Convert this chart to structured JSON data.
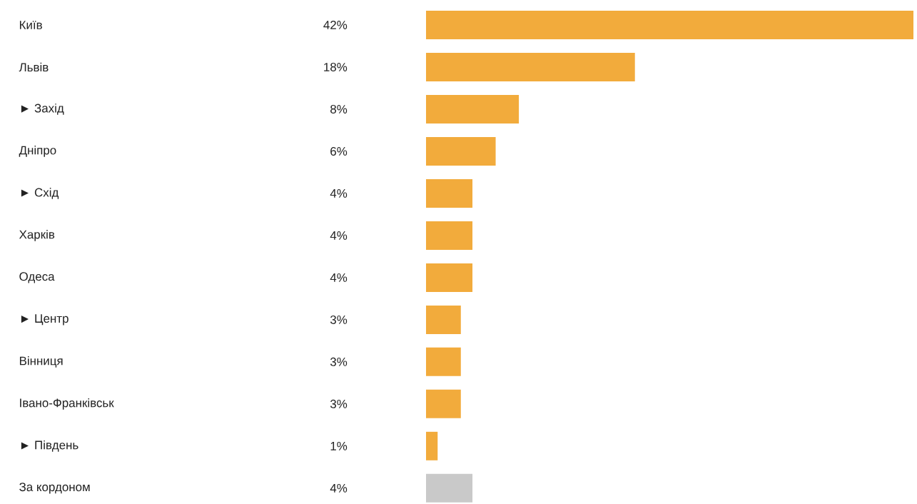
{
  "chart_data": {
    "type": "bar",
    "orientation": "horizontal",
    "categories": [
      "Київ",
      "Львів",
      "► Захід",
      "Дніпро",
      "► Схід",
      "Харків",
      "Одеса",
      "► Центр",
      "Вінниця",
      "Івано-Франківськ",
      "► Південь",
      "За кордоном"
    ],
    "values": [
      42,
      18,
      8,
      6,
      4,
      4,
      4,
      3,
      3,
      3,
      1,
      4
    ],
    "value_labels": [
      "42%",
      "18%",
      "8%",
      "6%",
      "4%",
      "4%",
      "4%",
      "3%",
      "3%",
      "3%",
      "1%",
      "4%"
    ],
    "colors": [
      "#f2ab3c",
      "#f2ab3c",
      "#f2ab3c",
      "#f2ab3c",
      "#f2ab3c",
      "#f2ab3c",
      "#f2ab3c",
      "#f2ab3c",
      "#f2ab3c",
      "#f2ab3c",
      "#f2ab3c",
      "#c9c9c9"
    ]
  }
}
